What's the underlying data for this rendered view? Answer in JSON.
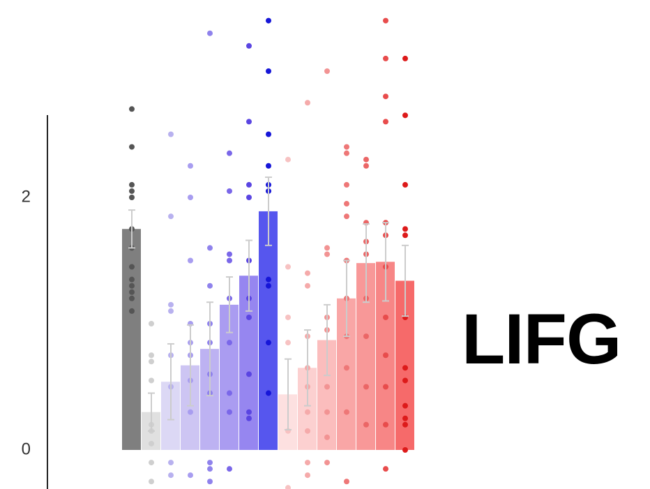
{
  "chart_data": {
    "type": "bar",
    "title": "LIFG",
    "xlabel": "",
    "ylabel": "",
    "ylim": [
      -0.3,
      2.7
    ],
    "yticks": [
      0,
      2
    ],
    "grid": false,
    "legend": "none",
    "bars": [
      {
        "value": 1.75,
        "err": 0.15,
        "color": "#7f7f7f",
        "pointColor": "#555555",
        "points": [
          2.7,
          2.4,
          2.1,
          2.05,
          2.0,
          1.75,
          1.6,
          1.45,
          1.35,
          1.3,
          1.25,
          1.2,
          1.1
        ]
      },
      {
        "value": 0.3,
        "err": 0.15,
        "color": "#e0e0e0",
        "pointColor": "#cfcfcf",
        "points": [
          1.0,
          0.75,
          0.7,
          0.55,
          0.2,
          0.15,
          0.05,
          -0.1,
          -0.25
        ]
      },
      {
        "value": 0.54,
        "err": 0.3,
        "color": "#dcd8f5",
        "pointColor": "#b8b1ef",
        "points": [
          2.5,
          1.85,
          1.15,
          1.1,
          0.75,
          0.5,
          -0.1,
          -0.2
        ]
      },
      {
        "value": 0.67,
        "err": 0.32,
        "color": "#cdc5f3",
        "pointColor": "#a89df0",
        "points": [
          2.25,
          2.0,
          1.5,
          1.0,
          0.85,
          0.75,
          0.55,
          0.3,
          -0.2
        ]
      },
      {
        "value": 0.8,
        "err": 0.37,
        "color": "#bdb2f2",
        "pointColor": "#8f82ec",
        "points": [
          3.3,
          1.6,
          1.3,
          1.0,
          0.85,
          0.6,
          0.45,
          -0.1,
          -0.15,
          -0.25
        ]
      },
      {
        "value": 1.15,
        "err": 0.22,
        "color": "#aa9cf1",
        "pointColor": "#7a67e9",
        "points": [
          2.35,
          2.05,
          1.55,
          1.5,
          1.2,
          0.85,
          0.45,
          0.3,
          -0.15
        ]
      },
      {
        "value": 1.38,
        "err": 0.28,
        "color": "#9686f0",
        "pointColor": "#5a45e2",
        "points": [
          3.2,
          2.6,
          2.1,
          2.0,
          1.5,
          1.2,
          1.05,
          0.6,
          0.3,
          0.25
        ]
      },
      {
        "value": 1.89,
        "err": 0.27,
        "color": "#5656ee",
        "pointColor": "#1616d8",
        "points": [
          3.4,
          3.0,
          2.5,
          2.25,
          2.1,
          2.05,
          1.35,
          1.3,
          0.85,
          0.45
        ]
      },
      {
        "value": 0.44,
        "err": 0.28,
        "color": "#fde0e0",
        "pointColor": "#f7c2c2",
        "points": [
          2.3,
          1.45,
          1.05,
          0.85,
          0.15,
          -0.3
        ]
      },
      {
        "value": 0.65,
        "err": 0.3,
        "color": "#fcd0d0",
        "pointColor": "#f5aaaa",
        "points": [
          2.75,
          1.4,
          1.3,
          0.9,
          0.65,
          0.5,
          0.3,
          0.15,
          -0.1,
          -0.2
        ]
      },
      {
        "value": 0.87,
        "err": 0.28,
        "color": "#fbbdbd",
        "pointColor": "#f29393",
        "points": [
          3.0,
          1.6,
          1.55,
          1.05,
          0.95,
          0.5,
          0.3,
          0.1,
          -0.1
        ]
      },
      {
        "value": 1.2,
        "err": 0.3,
        "color": "#f9a6a6",
        "pointColor": "#ee7777",
        "points": [
          2.4,
          2.35,
          2.1,
          1.95,
          1.85,
          1.5,
          1.2,
          0.9,
          0.65,
          0.3,
          -0.25
        ]
      },
      {
        "value": 1.48,
        "err": 0.31,
        "color": "#f89898",
        "pointColor": "#eb6666",
        "points": [
          2.3,
          2.25,
          1.8,
          1.65,
          1.55,
          1.2,
          0.9,
          0.5,
          0.2
        ]
      },
      {
        "value": 1.49,
        "err": 0.31,
        "color": "#f78686",
        "pointColor": "#e84c4c",
        "points": [
          3.4,
          3.1,
          2.8,
          2.6,
          1.8,
          1.7,
          1.45,
          1.05,
          0.75,
          0.5,
          0.2,
          -0.15
        ]
      },
      {
        "value": 1.34,
        "err": 0.28,
        "color": "#f66a6a",
        "pointColor": "#dd1a1a",
        "points": [
          3.1,
          2.65,
          2.1,
          1.75,
          1.7,
          1.05,
          0.65,
          0.55,
          0.35,
          0.25,
          0.2,
          0.0
        ]
      }
    ]
  }
}
